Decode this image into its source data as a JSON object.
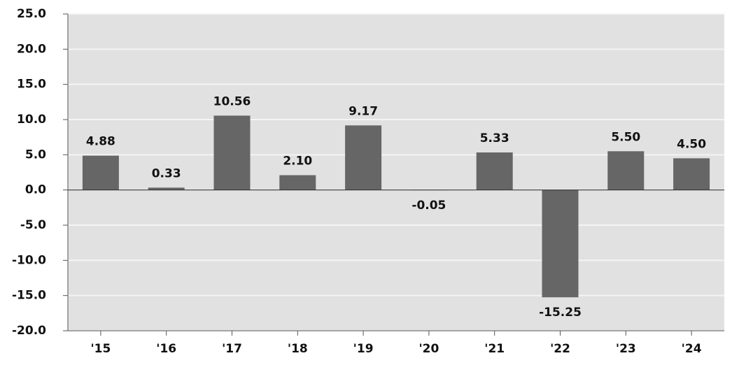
{
  "chart_data": {
    "type": "bar",
    "categories": [
      "'15",
      "'16",
      "'17",
      "'18",
      "'19",
      "'20",
      "'21",
      "'22",
      "'23",
      "'24"
    ],
    "values": [
      4.88,
      0.33,
      10.56,
      2.1,
      9.17,
      -0.05,
      5.33,
      -15.25,
      5.5,
      4.5
    ],
    "value_labels": [
      "4.88",
      "0.33",
      "10.56",
      "2.10",
      "9.17",
      "-0.05",
      "5.33",
      "-15.25",
      "5.50",
      "4.50"
    ],
    "color": "#666666",
    "ylim": [
      -20,
      25
    ],
    "yticks": [
      {
        "value": 25,
        "label": "25.0"
      },
      {
        "value": 20,
        "label": "20.0"
      },
      {
        "value": 15,
        "label": "15.0"
      },
      {
        "value": 10,
        "label": "10.0"
      },
      {
        "value": 5,
        "label": "5.0"
      },
      {
        "value": 0,
        "label": "0.0"
      },
      {
        "value": -5,
        "label": "-5.0"
      },
      {
        "value": -10,
        "label": "-10.0"
      },
      {
        "value": -15,
        "label": "-15.0"
      },
      {
        "value": -20,
        "label": "-20.0"
      }
    ],
    "grid": true
  }
}
